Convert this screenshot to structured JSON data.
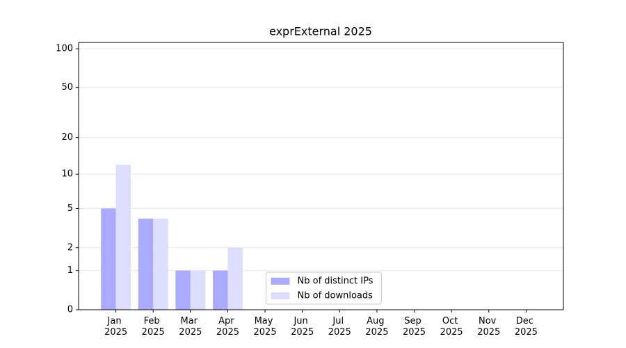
{
  "chart_data": {
    "type": "bar",
    "title": "exprExternal 2025",
    "categories": [
      "Jan 2025",
      "Feb 2025",
      "Mar 2025",
      "Apr 2025",
      "May 2025",
      "Jun 2025",
      "Jul 2025",
      "Aug 2025",
      "Sep 2025",
      "Oct 2025",
      "Nov 2025",
      "Dec 2025"
    ],
    "series": [
      {
        "name": "Nb of distinct IPs",
        "color": "#aaaaff",
        "values": [
          5,
          4,
          1,
          1,
          0,
          0,
          0,
          0,
          0,
          0,
          0,
          0
        ]
      },
      {
        "name": "Nb of downloads",
        "color": "#ddddff",
        "values": [
          12,
          4,
          1,
          2,
          0,
          0,
          0,
          0,
          0,
          0,
          0,
          0
        ]
      }
    ],
    "yscale": "log1p",
    "ylim": [
      0,
      112
    ],
    "yticks": [
      0,
      1,
      2,
      5,
      10,
      20,
      50,
      100
    ],
    "grid": true,
    "legend": "lower center"
  }
}
